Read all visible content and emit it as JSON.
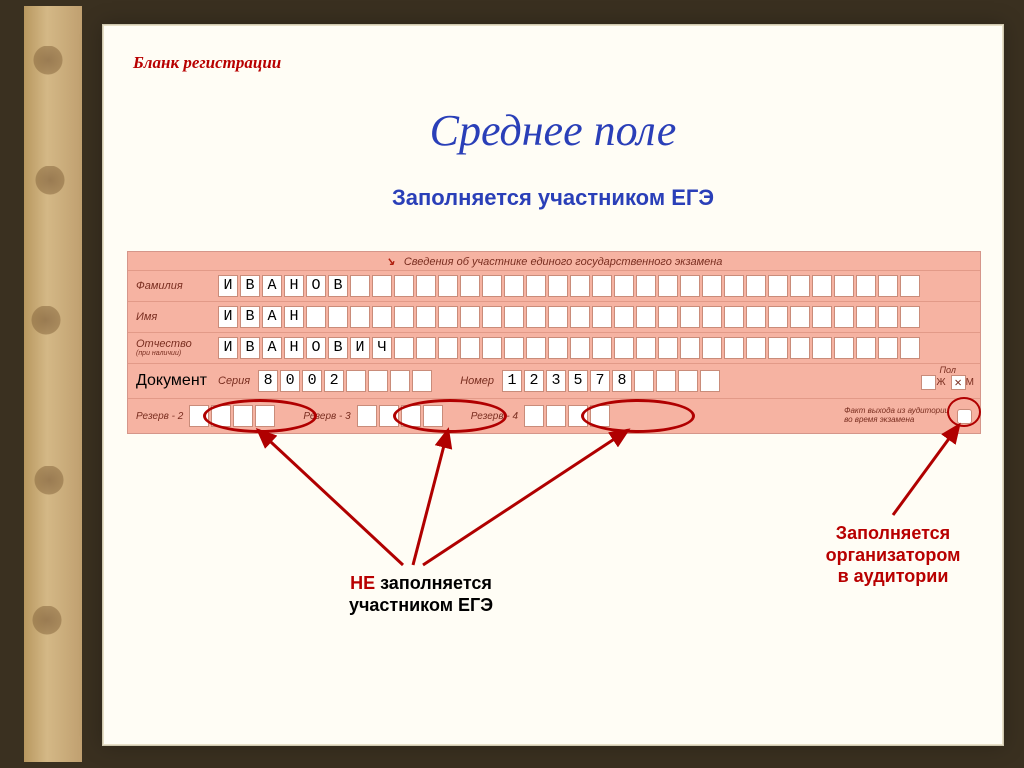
{
  "header": {
    "label": "Бланк регистрации"
  },
  "title": "Среднее поле",
  "subtitle": "Заполняется участником ЕГЭ",
  "form": {
    "section_title": "Сведения об участнике единого государственного экзамена",
    "fields": {
      "surname_label": "Фамилия",
      "surname": "ИВАНОВ",
      "name_label": "Имя",
      "name": "ИВАН",
      "patronymic_label": "Отчество",
      "patronymic_hint": "(при наличии)",
      "patronymic": "ИВАНОВИЧ",
      "row_cells": 32
    },
    "document": {
      "label": "Документ",
      "series_label": "Серия",
      "series": "8002",
      "series_cells": 8,
      "number_label": "Номер",
      "number": "123578",
      "number_cells": 10,
      "gender_label": "Пол",
      "gender_f": "Ж",
      "gender_m": "М",
      "gender_f_checked": false,
      "gender_m_checked": true
    },
    "reserve": {
      "r2_label": "Резерв - 2",
      "r2_cells": 4,
      "r3_label": "Резерв - 3",
      "r3_cells": 4,
      "r4_label": "Резерв - 4",
      "r4_cells": 4,
      "fact_label": "Факт выхода из аудитории\nво время экзамена"
    }
  },
  "annotations": {
    "left": {
      "highlight": "НЕ",
      "rest": " заполняется\nучастником ЕГЭ",
      "highlight_color": "#b80000",
      "rest_color": "#000000",
      "fontsize": 18
    },
    "right": {
      "line1": "Заполняется",
      "line2": "организатором",
      "line3": "в аудитории",
      "color1": "#b80000",
      "color2": "#b80000",
      "fontsize": 18
    }
  },
  "colors": {
    "slide_bg": "#fffdf5",
    "form_bg": "#f6b3a2",
    "title_color": "#2a3fb8",
    "accent_red": "#b80000",
    "oval_red": "#b00000"
  }
}
